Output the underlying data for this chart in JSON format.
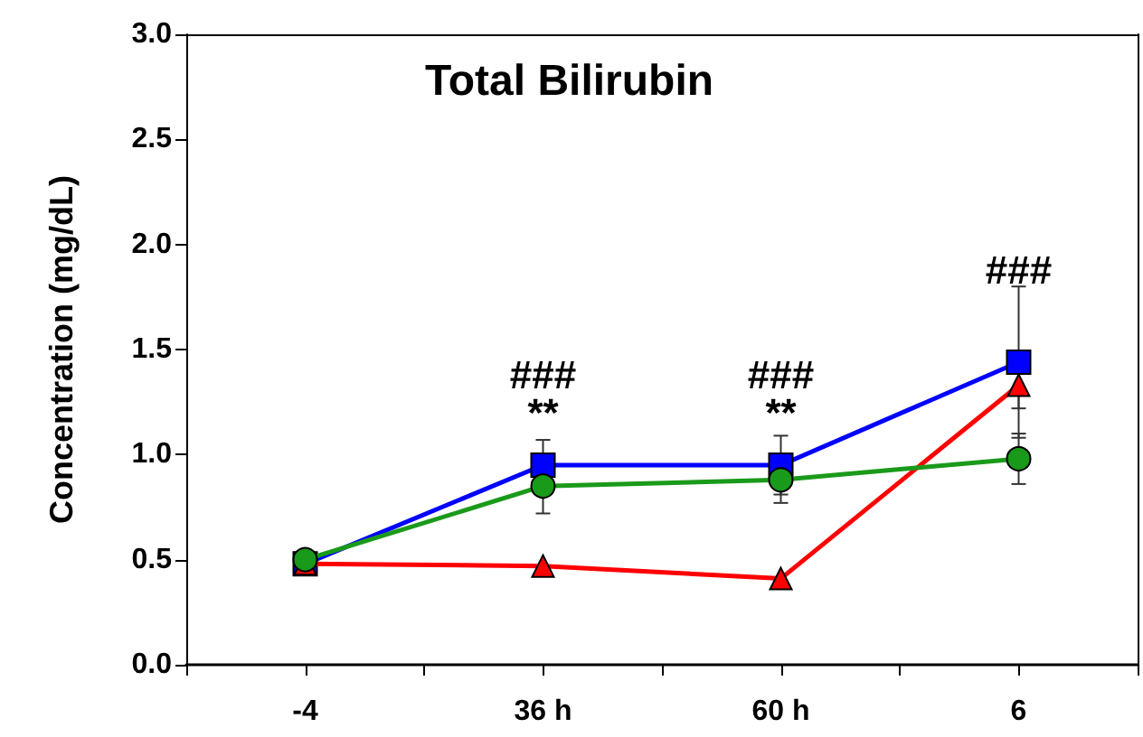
{
  "chart_data": {
    "type": "line",
    "title": "Total Bilirubin",
    "ylabel": "Concentration (mg/dL)",
    "categories": [
      "-4",
      "36 h",
      "60 h",
      "6"
    ],
    "series": [
      {
        "color": "#0000ff",
        "marker": "square",
        "values": [
          0.48,
          0.95,
          0.95,
          1.44
        ],
        "errors": [
          null,
          0.12,
          0.14,
          0.36
        ]
      },
      {
        "color": "#ff0000",
        "marker": "triangle",
        "values": [
          0.48,
          0.47,
          0.41,
          1.33
        ],
        "errors": [
          null,
          null,
          null,
          0.11
        ]
      },
      {
        "color": "#1a9a1a",
        "marker": "circle",
        "values": [
          0.5,
          0.85,
          0.88,
          0.98
        ],
        "errors": [
          null,
          0.13,
          0.11,
          0.12
        ]
      }
    ],
    "ylim": [
      0,
      3
    ],
    "yticks": [
      {
        "value": 0,
        "label": "0.0"
      },
      {
        "value": 0.5,
        "label": "0.5"
      },
      {
        "value": 1,
        "label": "1.0"
      },
      {
        "value": 1.5,
        "label": "1.5"
      },
      {
        "value": 2,
        "label": "2.0"
      },
      {
        "value": 2.5,
        "label": "2.5"
      },
      {
        "value": 3,
        "label": "3.0"
      }
    ],
    "grid": false,
    "annotations": [
      "###",
      "**",
      "###",
      "**",
      "###"
    ]
  }
}
